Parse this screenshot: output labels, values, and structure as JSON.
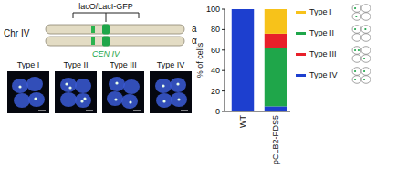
{
  "diagram": {
    "bracket_label": "lacO/LacI-GFP",
    "chromosome": "Chr IV",
    "homologs": [
      "a",
      "α"
    ],
    "centromere": "CEN IV",
    "image_labels": [
      "Type I",
      "Type II",
      "Type III",
      "Type IV"
    ]
  },
  "chart_data": {
    "type": "bar",
    "stacked": true,
    "ylabel": "% of cells",
    "categories": [
      "WT",
      "pCLB2-PDS5"
    ],
    "ylim": [
      0,
      100
    ],
    "yticks": [
      0,
      20,
      40,
      60,
      80,
      100
    ],
    "grid": false,
    "legend": "right",
    "series": [
      {
        "name": "Type I",
        "color": "#f7c21a",
        "values": [
          0,
          24
        ]
      },
      {
        "name": "Type II",
        "color": "#1fa64a",
        "values": [
          0,
          57
        ]
      },
      {
        "name": "Type III",
        "color": "#e8202a",
        "values": [
          0,
          14
        ]
      },
      {
        "name": "Type IV",
        "color": "#1d3fcf",
        "values": [
          100,
          5
        ]
      }
    ]
  }
}
